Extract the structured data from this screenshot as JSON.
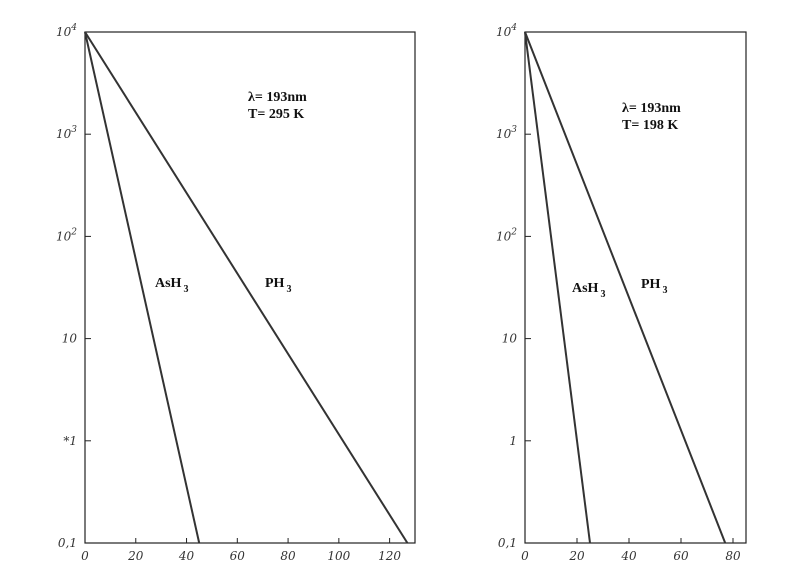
{
  "chart_data": [
    {
      "type": "line",
      "log_y": true,
      "ylim": [
        0.1,
        10000
      ],
      "xlim": [
        0,
        130
      ],
      "y_ticks": [
        {
          "value": 10000,
          "base": "10",
          "exp": "4"
        },
        {
          "value": 1000,
          "base": "10",
          "exp": "3"
        },
        {
          "value": 100,
          "base": "10",
          "exp": "2"
        },
        {
          "value": 10,
          "base": "10",
          "exp": ""
        },
        {
          "value": 1,
          "base": "*1",
          "exp": ""
        },
        {
          "value": 0.1,
          "base": "0,1",
          "exp": ""
        }
      ],
      "x_ticks": [
        {
          "value": 0,
          "label": "0"
        },
        {
          "value": 20,
          "label": "20"
        },
        {
          "value": 40,
          "label": "40"
        },
        {
          "value": 60,
          "label": "60"
        },
        {
          "value": 80,
          "label": "80"
        },
        {
          "value": 100,
          "label": "100"
        },
        {
          "value": 120,
          "label": "120"
        }
      ],
      "annotation": {
        "wavelength": "λ=  193nm",
        "temperature": "T= 295 K"
      },
      "series": [
        {
          "name": "AsH",
          "name_sub": "3",
          "x": [
            0,
            45
          ],
          "y": [
            10000,
            0.1
          ]
        },
        {
          "name": "PH",
          "name_sub": "3",
          "x": [
            0,
            127
          ],
          "y": [
            10000,
            0.1
          ]
        }
      ],
      "grid": false
    },
    {
      "type": "line",
      "log_y": true,
      "ylim": [
        0.1,
        10000
      ],
      "xlim": [
        0,
        85
      ],
      "y_ticks": [
        {
          "value": 10000,
          "base": "10",
          "exp": "4"
        },
        {
          "value": 1000,
          "base": "10",
          "exp": "3"
        },
        {
          "value": 100,
          "base": "10",
          "exp": "2"
        },
        {
          "value": 10,
          "base": "10",
          "exp": ""
        },
        {
          "value": 1,
          "base": "1",
          "exp": ""
        },
        {
          "value": 0.1,
          "base": "0,1",
          "exp": ""
        }
      ],
      "x_ticks": [
        {
          "value": 0,
          "label": "0"
        },
        {
          "value": 20,
          "label": "20"
        },
        {
          "value": 40,
          "label": "40"
        },
        {
          "value": 60,
          "label": "60"
        },
        {
          "value": 80,
          "label": "80"
        }
      ],
      "annotation": {
        "wavelength": "λ=  193nm",
        "temperature": "T= 198 K"
      },
      "series": [
        {
          "name": "AsH",
          "name_sub": "3",
          "x": [
            0,
            25
          ],
          "y": [
            10000,
            0.1
          ]
        },
        {
          "name": "PH",
          "name_sub": "3",
          "x": [
            0,
            77
          ],
          "y": [
            10000,
            0.1
          ]
        }
      ],
      "grid": false
    }
  ]
}
